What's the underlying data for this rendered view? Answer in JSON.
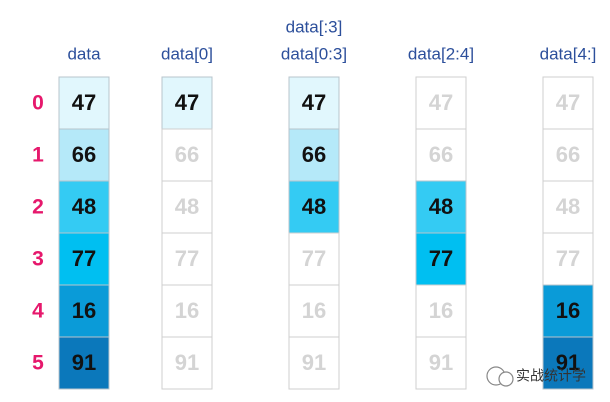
{
  "index": [
    0,
    1,
    2,
    3,
    4,
    5
  ],
  "row_colors": [
    "#e1f7fd",
    "#b5e9f9",
    "#34cbf3",
    "#00bff1",
    "#0a9bd8",
    "#0b78bb"
  ],
  "columns": [
    {
      "header": [
        "data"
      ],
      "cells": [
        47,
        66,
        48,
        77,
        16,
        91
      ],
      "selected": [
        true,
        true,
        true,
        true,
        true,
        true
      ]
    },
    {
      "header": [
        "data[0]"
      ],
      "cells": [
        47,
        66,
        48,
        77,
        16,
        91
      ],
      "selected": [
        true,
        false,
        false,
        false,
        false,
        false
      ]
    },
    {
      "header": [
        "data[:3]",
        "data[0:3]"
      ],
      "cells": [
        47,
        66,
        48,
        77,
        16,
        91
      ],
      "selected": [
        true,
        true,
        true,
        false,
        false,
        false
      ]
    },
    {
      "header": [
        "data[2:4]"
      ],
      "cells": [
        47,
        66,
        48,
        77,
        16,
        91
      ],
      "selected": [
        false,
        false,
        true,
        true,
        false,
        false
      ]
    },
    {
      "header": [
        "data[4:]"
      ],
      "cells": [
        47,
        66,
        48,
        77,
        16,
        91
      ],
      "selected": [
        false,
        false,
        false,
        false,
        true,
        true
      ]
    }
  ],
  "watermark": "实战统计学"
}
